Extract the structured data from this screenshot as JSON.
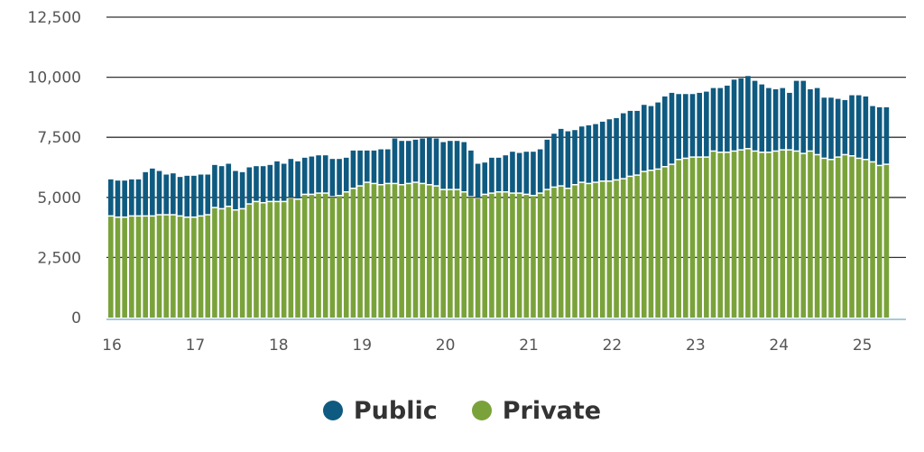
{
  "chart_data": {
    "type": "bar",
    "stacked": true,
    "y_ticks": [
      "0",
      "2,500",
      "5,000",
      "7,500",
      "10,000",
      "12,500"
    ],
    "ylim": [
      0,
      12500
    ],
    "x_ticks": [
      "16",
      "17",
      "18",
      "19",
      "20",
      "21",
      "22",
      "23",
      "24",
      "25"
    ],
    "legend": {
      "position": "bottom-center"
    },
    "grid": true,
    "series": [
      {
        "name": "Private",
        "color": "#7aa23a",
        "values": [
          4200,
          4150,
          4150,
          4200,
          4200,
          4200,
          4200,
          4250,
          4250,
          4250,
          4200,
          4150,
          4150,
          4200,
          4250,
          4550,
          4500,
          4600,
          4450,
          4500,
          4700,
          4800,
          4750,
          4800,
          4800,
          4800,
          4950,
          4900,
          5100,
          5100,
          5150,
          5150,
          5000,
          5050,
          5200,
          5350,
          5450,
          5600,
          5550,
          5500,
          5550,
          5550,
          5500,
          5550,
          5600,
          5550,
          5500,
          5450,
          5300,
          5300,
          5300,
          5200,
          5000,
          4950,
          5100,
          5150,
          5200,
          5200,
          5150,
          5150,
          5100,
          5050,
          5150,
          5300,
          5400,
          5450,
          5350,
          5500,
          5600,
          5550,
          5600,
          5650,
          5650,
          5700,
          5750,
          5850,
          5900,
          6050,
          6100,
          6150,
          6250,
          6350,
          6550,
          6600,
          6650,
          6650,
          6650,
          6900,
          6850,
          6850,
          6900,
          6950,
          7000,
          6900,
          6850,
          6850,
          6900,
          6950,
          6950,
          6900,
          6800,
          6900,
          6750,
          6600,
          6550,
          6650,
          6750,
          6700,
          6600,
          6550,
          6450,
          6300,
          6350
        ]
      },
      {
        "name": "Public",
        "color": "#0f5a80",
        "values": [
          1550,
          1550,
          1550,
          1550,
          1550,
          1850,
          2000,
          1850,
          1700,
          1750,
          1650,
          1750,
          1750,
          1750,
          1700,
          1800,
          1800,
          1800,
          1650,
          1550,
          1550,
          1500,
          1550,
          1550,
          1700,
          1600,
          1650,
          1600,
          1550,
          1600,
          1600,
          1600,
          1600,
          1550,
          1450,
          1600,
          1500,
          1350,
          1400,
          1500,
          1450,
          1900,
          1850,
          1800,
          1800,
          1900,
          2000,
          2000,
          2000,
          2050,
          2050,
          2100,
          1950,
          1450,
          1350,
          1500,
          1450,
          1550,
          1750,
          1700,
          1800,
          1850,
          1850,
          2100,
          2250,
          2400,
          2400,
          2300,
          2350,
          2450,
          2450,
          2500,
          2600,
          2600,
          2750,
          2750,
          2700,
          2800,
          2700,
          2800,
          2950,
          3000,
          2750,
          2700,
          2650,
          2700,
          2750,
          2650,
          2700,
          2800,
          3000,
          3000,
          3050,
          2950,
          2850,
          2700,
          2600,
          2600,
          2400,
          2950,
          3050,
          2600,
          2800,
          2550,
          2600,
          2450,
          2300,
          2550,
          2650,
          2650,
          2350,
          2450,
          2400
        ]
      }
    ]
  }
}
